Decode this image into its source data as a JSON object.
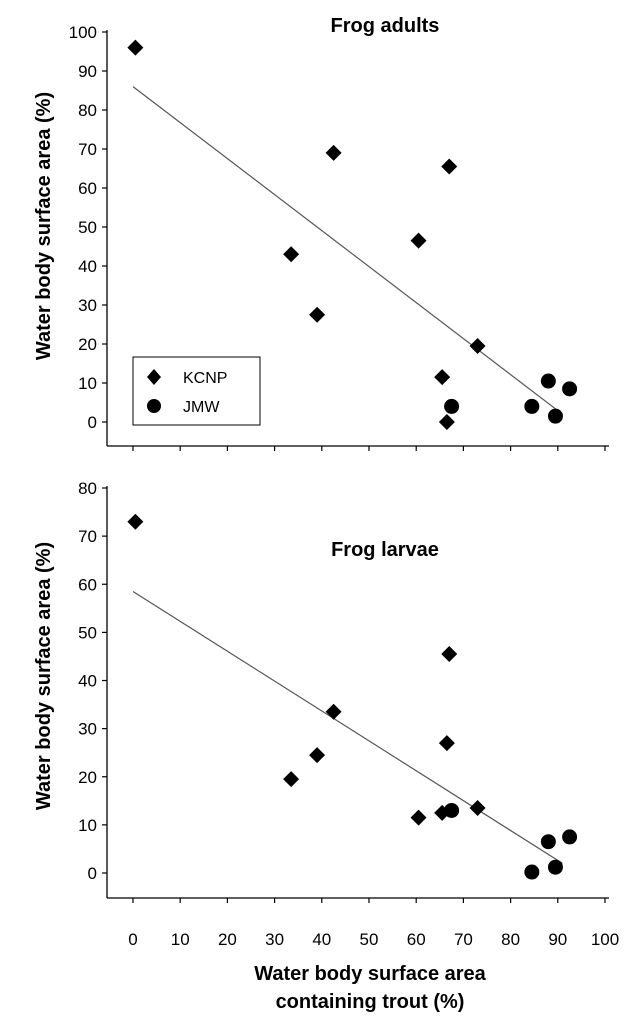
{
  "chart_data": [
    {
      "type": "scatter",
      "title": "Frog adults",
      "xlabel": "",
      "ylabel": "Water body surface area (%)",
      "xlim": [
        0,
        100
      ],
      "ylim": [
        0,
        100
      ],
      "xticks": [
        0,
        10,
        20,
        30,
        40,
        50,
        60,
        70,
        80,
        90,
        100
      ],
      "yticks": [
        0,
        10,
        20,
        30,
        40,
        50,
        60,
        70,
        80,
        90,
        100
      ],
      "show_x_tick_labels": false,
      "grid": false,
      "legend": {
        "position": "bottom-left",
        "entries": [
          "KCNP",
          "JMW"
        ]
      },
      "series": [
        {
          "name": "KCNP",
          "marker": "diamond",
          "points": [
            [
              0.5,
              96
            ],
            [
              33.5,
              43
            ],
            [
              39,
              27.5
            ],
            [
              42.5,
              69
            ],
            [
              60.5,
              46.5
            ],
            [
              65.5,
              11.5
            ],
            [
              66.5,
              0
            ],
            [
              67,
              65.5
            ],
            [
              73,
              19.5
            ]
          ]
        },
        {
          "name": "JMW",
          "marker": "circle",
          "points": [
            [
              67.5,
              4
            ],
            [
              84.5,
              4
            ],
            [
              88,
              10.5
            ],
            [
              89.5,
              1.5
            ],
            [
              92.5,
              8.5
            ]
          ]
        }
      ],
      "trendline": {
        "x": [
          0,
          91
        ],
        "y": [
          86,
          2
        ]
      }
    },
    {
      "type": "scatter",
      "title": "Frog larvae",
      "xlabel": "Water body surface area containing trout (%)",
      "xlabel_lines": [
        "Water body surface area",
        "containing trout (%)"
      ],
      "ylabel": "Water body surface area (%)",
      "xlim": [
        0,
        100
      ],
      "ylim": [
        0,
        80
      ],
      "xticks": [
        0,
        10,
        20,
        30,
        40,
        50,
        60,
        70,
        80,
        90,
        100
      ],
      "yticks": [
        0,
        10,
        20,
        30,
        40,
        50,
        60,
        70,
        80
      ],
      "show_x_tick_labels": true,
      "grid": false,
      "series": [
        {
          "name": "KCNP",
          "marker": "diamond",
          "points": [
            [
              0.5,
              73
            ],
            [
              33.5,
              19.5
            ],
            [
              39,
              24.5
            ],
            [
              42.5,
              33.5
            ],
            [
              60.5,
              11.5
            ],
            [
              65.5,
              12.5
            ],
            [
              66.5,
              27
            ],
            [
              67,
              45.5
            ],
            [
              73,
              13.5
            ]
          ]
        },
        {
          "name": "JMW",
          "marker": "circle",
          "points": [
            [
              67.5,
              13
            ],
            [
              84.5,
              0.2
            ],
            [
              88,
              6.5
            ],
            [
              89.5,
              1.2
            ],
            [
              92.5,
              7.5
            ]
          ]
        }
      ],
      "trendline": {
        "x": [
          0,
          91
        ],
        "y": [
          58.5,
          2
        ]
      }
    }
  ]
}
